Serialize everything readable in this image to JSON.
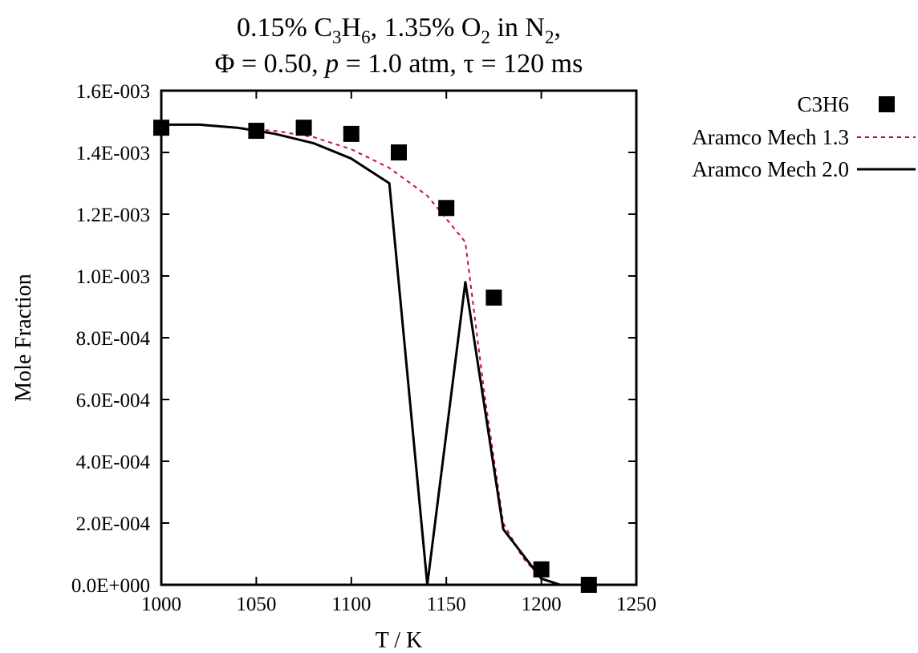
{
  "chart_data": {
    "type": "line",
    "title_line1": {
      "a": "0.15% C",
      "a_sub": "3",
      "b": "H",
      "b_sub": "6",
      "c": ", 1.35% O",
      "c_sub": "2",
      "d": " in N",
      "d_sub": "2",
      "e": ","
    },
    "title_line2": {
      "a": "Φ = 0.50, ",
      "b": "p",
      "c": " = 1.0 atm, τ = 120 ms"
    },
    "xlabel": "T / K",
    "ylabel": "Mole Fraction",
    "xlim": [
      1000,
      1250
    ],
    "ylim": [
      0,
      0.0016
    ],
    "x_ticks": [
      "1000",
      "1050",
      "1100",
      "1150",
      "1200",
      "1250"
    ],
    "y_ticks": [
      "0.0E+000",
      "2.0E-004",
      "4.0E-004",
      "6.0E-004",
      "8.0E-004",
      "1.0E-003",
      "1.2E-003",
      "1.4E-003",
      "1.6E-003"
    ],
    "legend_position": "top-right, outside plot area",
    "series": [
      {
        "name": "C3H6",
        "kind": "markers",
        "marker": "filled-square",
        "color": "#000000",
        "x": [
          1000,
          1050,
          1075,
          1100,
          1125,
          1150,
          1175,
          1200,
          1225
        ],
        "y": [
          0.00148,
          0.00147,
          0.00148,
          0.00146,
          0.0014,
          0.00122,
          0.00093,
          5e-05,
          0.0
        ]
      },
      {
        "name": "Aramco Mech 1.3",
        "kind": "line",
        "dash": "dashed",
        "color": "#c8102e",
        "x": [
          1000,
          1020,
          1040,
          1060,
          1080,
          1100,
          1120,
          1140,
          1160,
          1170,
          1180,
          1190,
          1200,
          1210,
          1225
        ],
        "y": [
          0.00149,
          0.00149,
          0.00148,
          0.00147,
          0.00145,
          0.00141,
          0.00135,
          0.00126,
          0.00111,
          0.00062,
          0.0002,
          9e-05,
          2e-05,
          0.0,
          0.0
        ]
      },
      {
        "name": "Aramco Mech 2.0",
        "kind": "line",
        "dash": "solid",
        "color": "#000000",
        "x": [
          1000,
          1020,
          1040,
          1060,
          1080,
          1100,
          1120,
          1140,
          1160,
          1170,
          1180,
          1190,
          1200,
          1210,
          1225
        ],
        "y": [
          0.00149,
          0.00149,
          0.00148,
          0.00146,
          0.00143,
          0.00138,
          0.0013,
          0.0,
          0.00098,
          0.00058,
          0.00018,
          0.0001,
          2e-05,
          0.0,
          0.0
        ]
      }
    ]
  }
}
